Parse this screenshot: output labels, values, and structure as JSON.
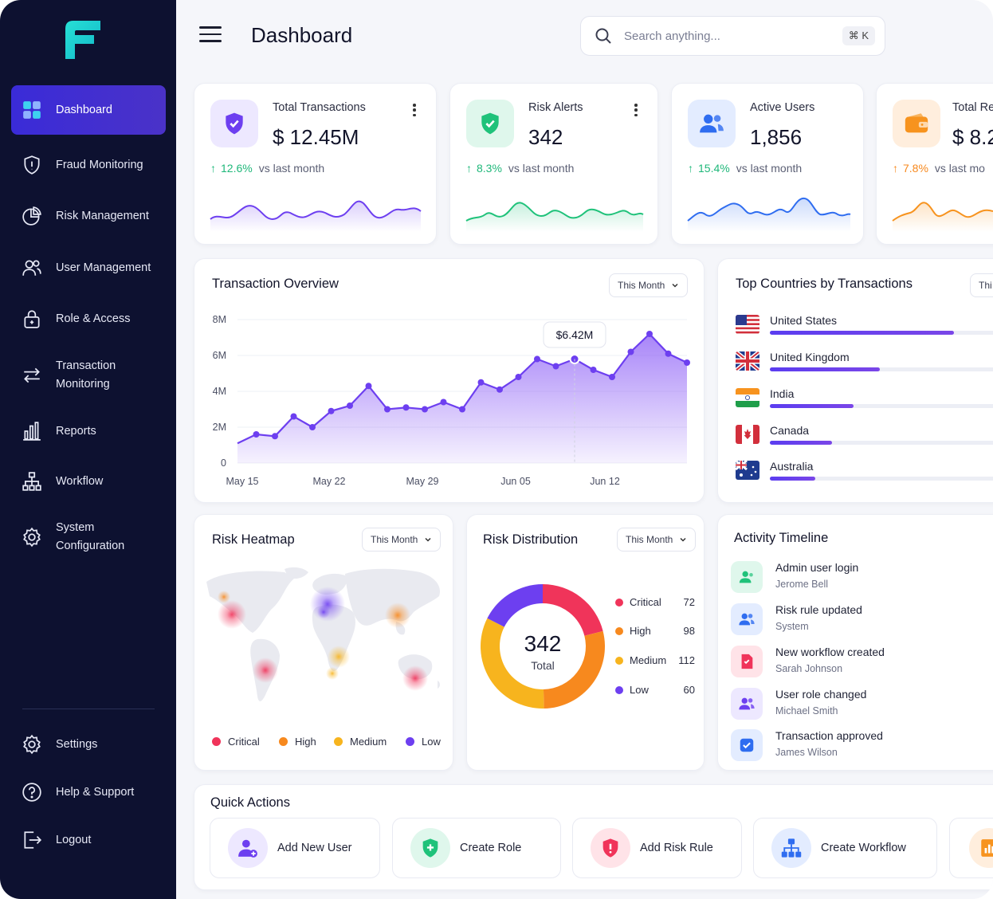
{
  "sidebar": {
    "items": [
      {
        "label": "Dashboard",
        "icon": "grid-icon"
      },
      {
        "label": "Fraud Monitoring",
        "icon": "shield-icon"
      },
      {
        "label": "Risk Management",
        "icon": "pie-chart-icon"
      },
      {
        "label": "User Management",
        "icon": "users-icon"
      },
      {
        "label": "Role & Access",
        "icon": "lock-icon"
      },
      {
        "label": "Transaction",
        "label2": "Monitoring",
        "icon": "arrows-icon"
      },
      {
        "label": "Reports",
        "icon": "bar-chart-icon"
      },
      {
        "label": "Workflow",
        "icon": "hierarchy-icon"
      },
      {
        "label": "System",
        "label2": "Configuration",
        "icon": "gear-icon"
      }
    ],
    "bottom": [
      {
        "label": "Settings",
        "icon": "gear-icon"
      },
      {
        "label": "Help & Support",
        "icon": "help-icon"
      },
      {
        "label": "Logout",
        "icon": "logout-icon"
      }
    ]
  },
  "header": {
    "title": "Dashboard",
    "search_placeholder": "Search anything...",
    "shortcut": "⌘ K"
  },
  "stats": [
    {
      "label": "Total Transactions",
      "value": "$ 12.45M",
      "change": "12.6%",
      "vs": "vs last month",
      "color": "#6d3ff0"
    },
    {
      "label": "Risk Alerts",
      "value": "342",
      "change": "8.3%",
      "vs": "vs last month",
      "color": "#1fc27a"
    },
    {
      "label": "Active Users",
      "value": "1,856",
      "change": "15.4%",
      "vs": "vs last month",
      "color": "#2f6df0"
    },
    {
      "label": "Total Re",
      "value": "$ 8.2",
      "change": "7.8%",
      "vs": "vs last mo",
      "color": "#f7931e"
    }
  ],
  "transaction_overview": {
    "title": "Transaction Overview",
    "filter": "This Month",
    "tooltip": "$6.42M"
  },
  "chart_data": {
    "type": "area",
    "y_ticks": [
      "8M",
      "6M",
      "4M",
      "2M",
      "0"
    ],
    "ylim": [
      0,
      8
    ],
    "x_ticks": [
      "May 15",
      "May 22",
      "May 29",
      "Jun 05",
      "Jun 12"
    ],
    "values": [
      1.1,
      1.6,
      1.5,
      2.6,
      2.0,
      2.9,
      3.2,
      4.3,
      3.0,
      3.1,
      3.0,
      3.4,
      3.0,
      4.5,
      4.1,
      4.8,
      5.8,
      5.4,
      5.8,
      5.2,
      4.8,
      6.2,
      7.2,
      6.1,
      5.6
    ]
  },
  "countries": {
    "title": "Top Countries by Transactions",
    "filter": "Thi",
    "items": [
      {
        "name": "United States",
        "share": 0.77
      },
      {
        "name": "United Kingdom",
        "share": 0.46
      },
      {
        "name": "India",
        "share": 0.35
      },
      {
        "name": "Canada",
        "share": 0.26
      },
      {
        "name": "Australia",
        "share": 0.19
      }
    ]
  },
  "heatmap": {
    "title": "Risk Heatmap",
    "filter": "This Month",
    "legend": [
      {
        "label": "Critical",
        "color": "#f0345a"
      },
      {
        "label": "High",
        "color": "#f7891e"
      },
      {
        "label": "Medium",
        "color": "#f7b41e"
      },
      {
        "label": "Low",
        "color": "#6d3ff0"
      }
    ]
  },
  "distribution": {
    "title": "Risk Distribution",
    "filter": "This Month",
    "total": "342",
    "total_label": "Total",
    "items": [
      {
        "label": "Critical",
        "value": "72",
        "color": "#f0345a"
      },
      {
        "label": "High",
        "value": "98",
        "color": "#f7891e"
      },
      {
        "label": "Medium",
        "value": "112",
        "color": "#f7b41e"
      },
      {
        "label": "Low",
        "value": "60",
        "color": "#6d3ff0"
      }
    ]
  },
  "timeline": {
    "title": "Activity Timeline",
    "items": [
      {
        "title": "Admin user login",
        "sub": "Jerome Bell",
        "icon": "user-icon"
      },
      {
        "title": "Risk rule updated",
        "sub": "System",
        "icon": "users-icon"
      },
      {
        "title": "New workflow created",
        "sub": "Sarah Johnson",
        "icon": "document-icon"
      },
      {
        "title": "User role changed",
        "sub": "Michael Smith",
        "icon": "users-icon"
      },
      {
        "title": "Transaction approved",
        "sub": "James Wilson",
        "icon": "check-icon"
      }
    ]
  },
  "quick_actions": {
    "title": "Quick Actions",
    "items": [
      {
        "label": "Add New User",
        "icon": "add-user-icon"
      },
      {
        "label": "Create Role",
        "icon": "shield-plus-icon"
      },
      {
        "label": "Add Risk Rule",
        "icon": "alert-shield-icon"
      },
      {
        "label": "Create Workflow",
        "icon": "hierarchy-icon"
      },
      {
        "label": "",
        "icon": "report-icon"
      }
    ]
  }
}
